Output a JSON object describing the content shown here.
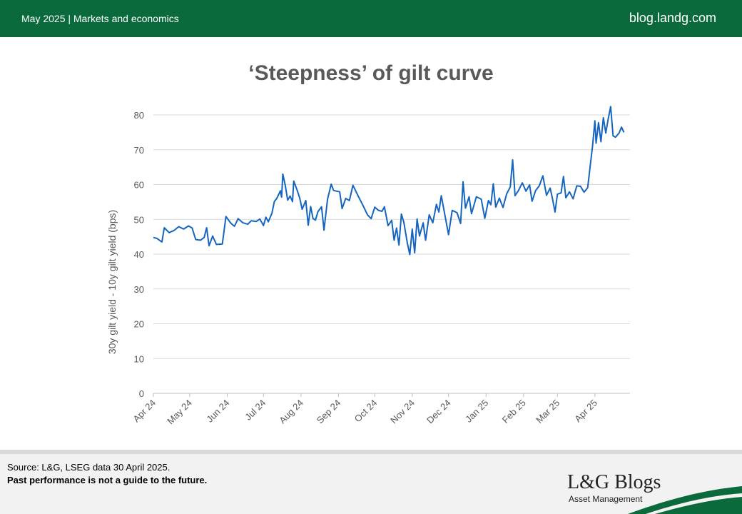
{
  "header": {
    "left_text": "May 2025 | Markets and economics",
    "right_text": "blog.landg.com"
  },
  "colors": {
    "brand_green": "#0b6a3b",
    "line": "#1565c0",
    "grid": "#d9d9d9"
  },
  "chart_data": {
    "type": "line",
    "title": "‘Steepness’ of gilt curve",
    "ylabel": "30y gilt yield - 10y gilt yield (bps)",
    "xlabel": "",
    "ylim": [
      0,
      80
    ],
    "yticks": [
      0,
      10,
      20,
      30,
      40,
      50,
      60,
      70,
      80
    ],
    "grid": true,
    "legend": "none",
    "xlim": [
      "2024-04-01",
      "2025-04-30"
    ],
    "x_ticks": [
      {
        "label": "Apr 24",
        "date": "2024-04-01"
      },
      {
        "label": "May 24",
        "date": "2024-05-01"
      },
      {
        "label": "Jun 24",
        "date": "2024-06-01"
      },
      {
        "label": "Jul 24",
        "date": "2024-07-01"
      },
      {
        "label": "Aug 24",
        "date": "2024-08-01"
      },
      {
        "label": "Sep 24",
        "date": "2024-09-01"
      },
      {
        "label": "Oct 24",
        "date": "2024-10-01"
      },
      {
        "label": "Nov 24",
        "date": "2024-11-01"
      },
      {
        "label": "Dec 24",
        "date": "2024-12-01"
      },
      {
        "label": "Jan 25",
        "date": "2025-01-01"
      },
      {
        "label": "Feb 25",
        "date": "2025-02-01"
      },
      {
        "label": "Mar 25",
        "date": "2025-03-01"
      },
      {
        "label": "Apr 25",
        "date": "2025-04-01"
      }
    ],
    "series": [
      {
        "values": [
          [
            "2024-04-01",
            44.8
          ],
          [
            "2024-04-04",
            44.5
          ],
          [
            "2024-04-08",
            43.5
          ],
          [
            "2024-04-10",
            47.6
          ],
          [
            "2024-04-14",
            46.2
          ],
          [
            "2024-04-18",
            46.8
          ],
          [
            "2024-04-22",
            47.9
          ],
          [
            "2024-04-26",
            47.2
          ],
          [
            "2024-04-30",
            48.1
          ],
          [
            "2024-05-03",
            47.5
          ],
          [
            "2024-05-06",
            44.2
          ],
          [
            "2024-05-10",
            44.0
          ],
          [
            "2024-05-13",
            44.8
          ],
          [
            "2024-05-15",
            47.6
          ],
          [
            "2024-05-17",
            42.4
          ],
          [
            "2024-05-20",
            45.2
          ],
          [
            "2024-05-23",
            42.8
          ],
          [
            "2024-05-28",
            42.9
          ],
          [
            "2024-05-31",
            50.8
          ],
          [
            "2024-06-04",
            48.9
          ],
          [
            "2024-06-07",
            48.0
          ],
          [
            "2024-06-10",
            50.2
          ],
          [
            "2024-06-14",
            49.0
          ],
          [
            "2024-06-18",
            48.6
          ],
          [
            "2024-06-21",
            49.6
          ],
          [
            "2024-06-25",
            49.4
          ],
          [
            "2024-06-28",
            50.1
          ],
          [
            "2024-07-01",
            48.2
          ],
          [
            "2024-07-03",
            50.6
          ],
          [
            "2024-07-05",
            49.3
          ],
          [
            "2024-07-08",
            51.8
          ],
          [
            "2024-07-10",
            55.1
          ],
          [
            "2024-07-12",
            56.0
          ],
          [
            "2024-07-15",
            58.2
          ],
          [
            "2024-07-16",
            56.4
          ],
          [
            "2024-07-17",
            63.0
          ],
          [
            "2024-07-19",
            59.8
          ],
          [
            "2024-07-21",
            55.5
          ],
          [
            "2024-07-23",
            56.7
          ],
          [
            "2024-07-25",
            55.1
          ],
          [
            "2024-07-26",
            61.0
          ],
          [
            "2024-07-29",
            58.2
          ],
          [
            "2024-07-31",
            56.1
          ],
          [
            "2024-08-02",
            52.9
          ],
          [
            "2024-08-05",
            55.4
          ],
          [
            "2024-08-07",
            48.3
          ],
          [
            "2024-08-09",
            53.7
          ],
          [
            "2024-08-11",
            50.2
          ],
          [
            "2024-08-13",
            49.8
          ],
          [
            "2024-08-15",
            52.2
          ],
          [
            "2024-08-18",
            53.6
          ],
          [
            "2024-08-20",
            46.9
          ],
          [
            "2024-08-23",
            55.8
          ],
          [
            "2024-08-26",
            60.1
          ],
          [
            "2024-08-28",
            58.3
          ],
          [
            "2024-09-02",
            57.9
          ],
          [
            "2024-09-04",
            53.1
          ],
          [
            "2024-09-07",
            56.0
          ],
          [
            "2024-09-10",
            55.4
          ],
          [
            "2024-09-13",
            59.8
          ],
          [
            "2024-09-17",
            56.9
          ],
          [
            "2024-09-21",
            54.2
          ],
          [
            "2024-09-25",
            51.3
          ],
          [
            "2024-09-28",
            50.2
          ],
          [
            "2024-10-01",
            53.5
          ],
          [
            "2024-10-04",
            52.6
          ],
          [
            "2024-10-07",
            52.3
          ],
          [
            "2024-10-09",
            53.6
          ],
          [
            "2024-10-12",
            48.2
          ],
          [
            "2024-10-15",
            49.7
          ],
          [
            "2024-10-17",
            44.0
          ],
          [
            "2024-10-19",
            47.5
          ],
          [
            "2024-10-21",
            42.6
          ],
          [
            "2024-10-23",
            51.5
          ],
          [
            "2024-10-25",
            49.2
          ],
          [
            "2024-10-28",
            43.1
          ],
          [
            "2024-10-30",
            39.9
          ],
          [
            "2024-11-01",
            47.2
          ],
          [
            "2024-11-03",
            40.4
          ],
          [
            "2024-11-05",
            50.1
          ],
          [
            "2024-11-07",
            45.2
          ],
          [
            "2024-11-10",
            49.0
          ],
          [
            "2024-11-12",
            44.0
          ],
          [
            "2024-11-15",
            51.3
          ],
          [
            "2024-11-18",
            49.0
          ],
          [
            "2024-11-21",
            54.3
          ],
          [
            "2024-11-23",
            52.1
          ],
          [
            "2024-11-25",
            56.8
          ],
          [
            "2024-11-28",
            51.2
          ],
          [
            "2024-12-01",
            45.6
          ],
          [
            "2024-12-04",
            52.6
          ],
          [
            "2024-12-08",
            51.9
          ],
          [
            "2024-12-11",
            48.8
          ],
          [
            "2024-12-13",
            60.8
          ],
          [
            "2024-12-15",
            53.2
          ],
          [
            "2024-12-18",
            56.5
          ],
          [
            "2024-12-20",
            51.6
          ],
          [
            "2024-12-24",
            56.5
          ],
          [
            "2024-12-28",
            55.8
          ],
          [
            "2024-12-31",
            50.3
          ],
          [
            "2025-01-03",
            55.4
          ],
          [
            "2025-01-05",
            54.2
          ],
          [
            "2025-01-07",
            60.2
          ],
          [
            "2025-01-09",
            53.5
          ],
          [
            "2025-01-12",
            56.1
          ],
          [
            "2025-01-15",
            53.4
          ],
          [
            "2025-01-18",
            57.3
          ],
          [
            "2025-01-21",
            59.3
          ],
          [
            "2025-01-23",
            67.1
          ],
          [
            "2025-01-25",
            56.8
          ],
          [
            "2025-01-28",
            58.4
          ],
          [
            "2025-01-31",
            60.5
          ],
          [
            "2025-02-03",
            58.1
          ],
          [
            "2025-02-06",
            59.9
          ],
          [
            "2025-02-08",
            55.2
          ],
          [
            "2025-02-11",
            58.3
          ],
          [
            "2025-02-14",
            59.6
          ],
          [
            "2025-02-17",
            62.5
          ],
          [
            "2025-02-20",
            56.9
          ],
          [
            "2025-02-23",
            59.0
          ],
          [
            "2025-02-25",
            55.8
          ],
          [
            "2025-02-27",
            52.1
          ],
          [
            "2025-03-01",
            57.2
          ],
          [
            "2025-03-04",
            57.6
          ],
          [
            "2025-03-06",
            62.3
          ],
          [
            "2025-03-08",
            56.2
          ],
          [
            "2025-03-11",
            57.9
          ],
          [
            "2025-03-14",
            55.9
          ],
          [
            "2025-03-17",
            59.6
          ],
          [
            "2025-03-20",
            59.5
          ],
          [
            "2025-03-23",
            57.8
          ],
          [
            "2025-03-26",
            59.1
          ],
          [
            "2025-03-28",
            65.1
          ],
          [
            "2025-03-30",
            70.8
          ],
          [
            "2025-04-01",
            78.3
          ],
          [
            "2025-04-02",
            71.9
          ],
          [
            "2025-04-04",
            77.8
          ],
          [
            "2025-04-06",
            72.3
          ],
          [
            "2025-04-08",
            79.2
          ],
          [
            "2025-04-10",
            74.8
          ],
          [
            "2025-04-12",
            78.9
          ],
          [
            "2025-04-14",
            82.4
          ],
          [
            "2025-04-16",
            74.0
          ],
          [
            "2025-04-18",
            73.6
          ],
          [
            "2025-04-21",
            74.8
          ],
          [
            "2025-04-23",
            76.5
          ],
          [
            "2025-04-25",
            75.0
          ]
        ]
      }
    ]
  },
  "footer": {
    "source": "Source: L&G, LSEG data 30 April 2025.",
    "disclaimer": "Past performance is not a guide to the future.",
    "logo_text": "L&G Blogs",
    "logo_sub": "Asset Management"
  }
}
